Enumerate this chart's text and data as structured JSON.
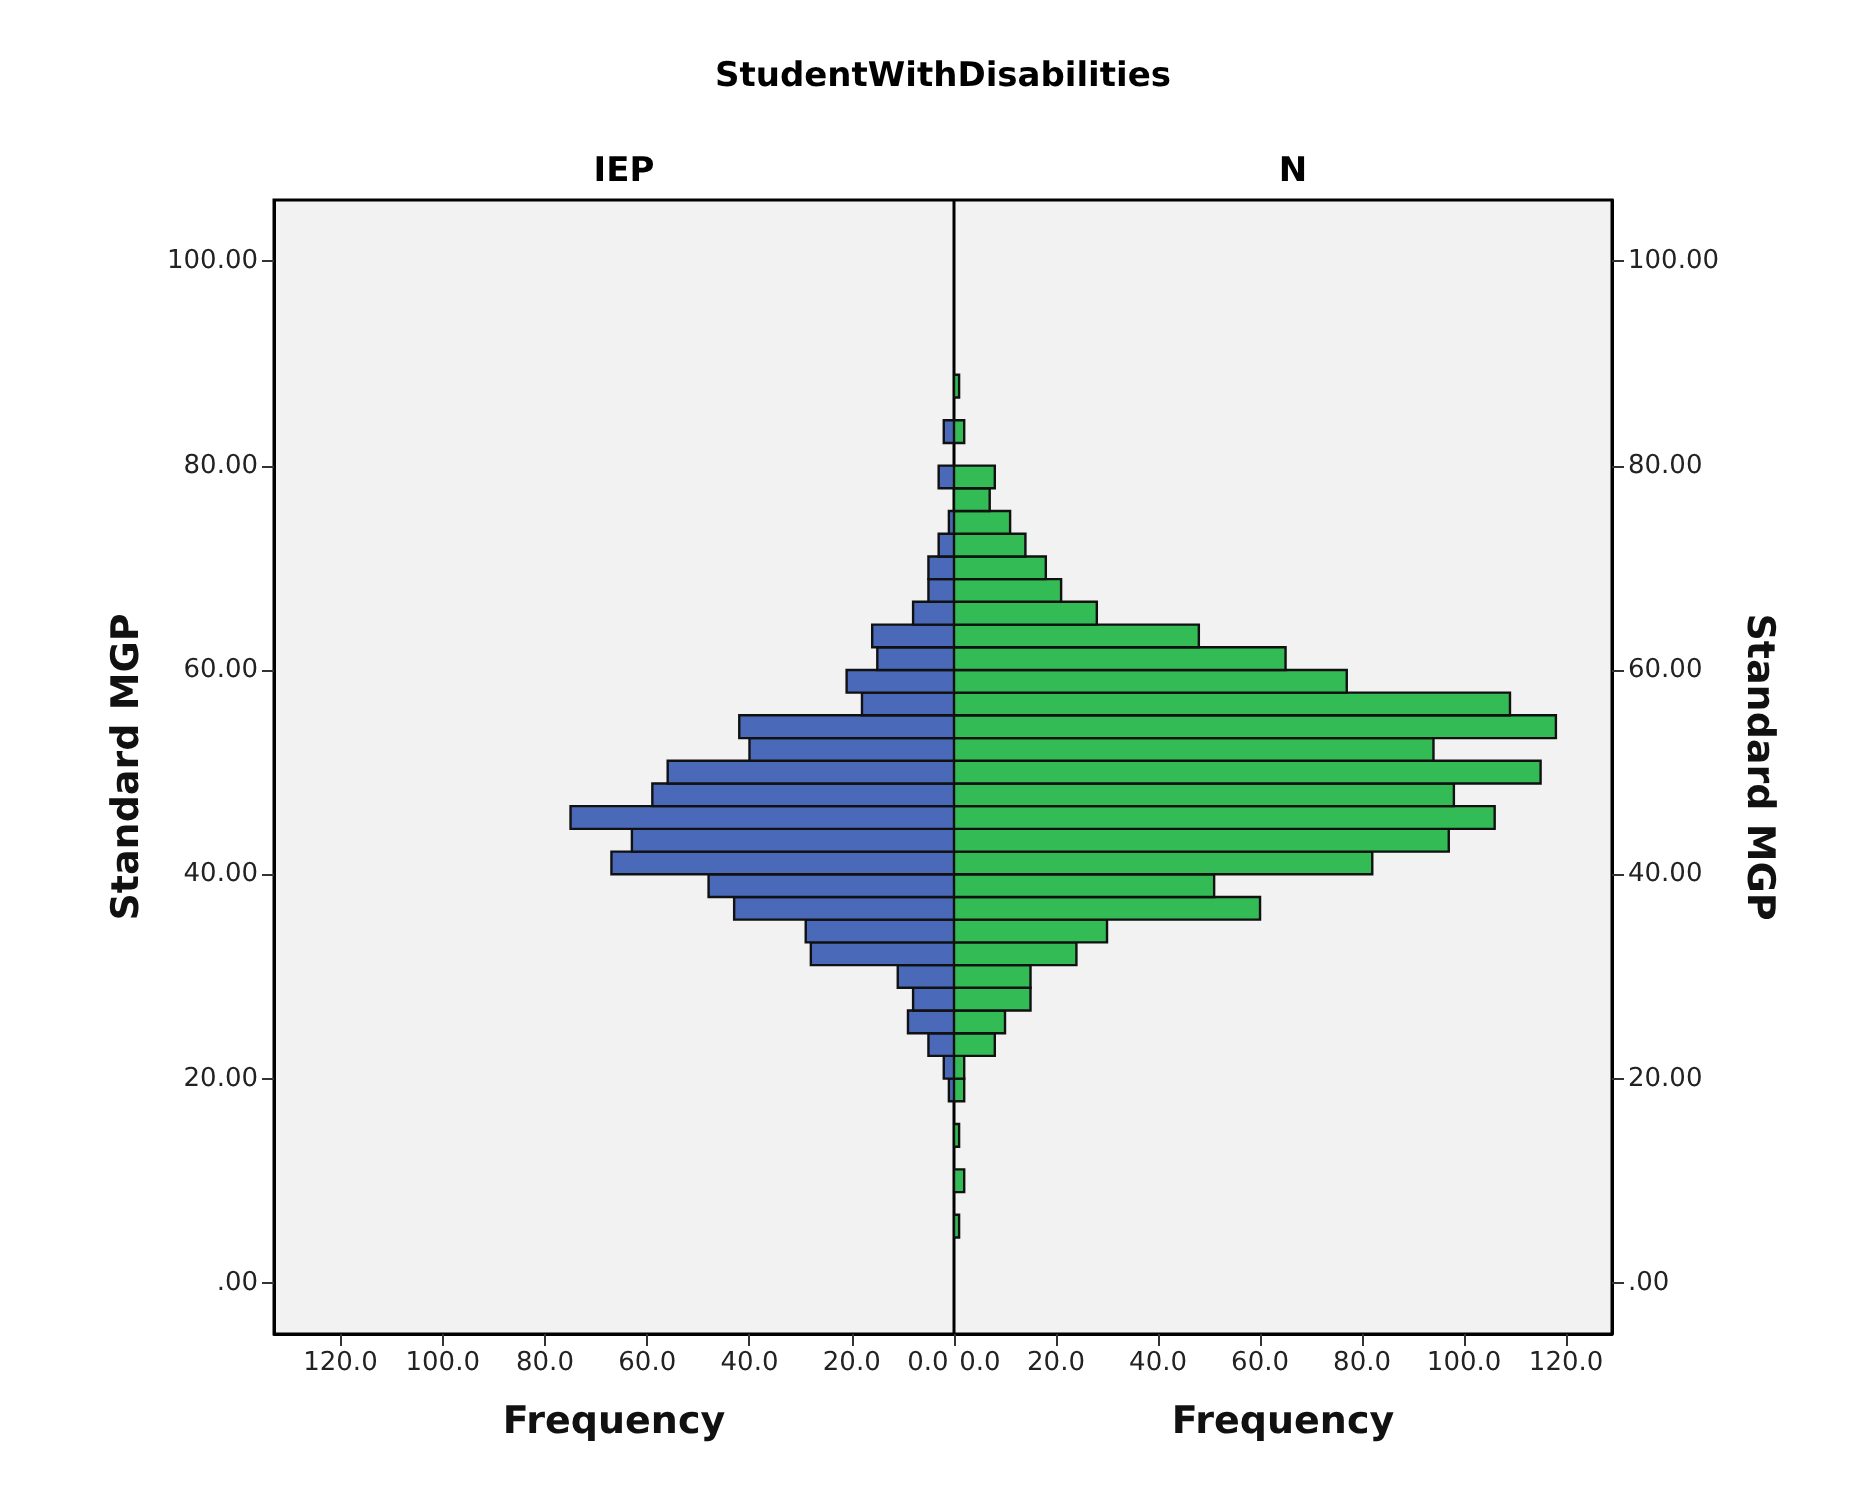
{
  "chart_data": [
    {
      "type": "histogram",
      "orientation": "horizontal",
      "title": "StudentWithDisabilities",
      "subtitle": "IEP",
      "xlabel": "Frequency",
      "ylabel": "Standard MGP",
      "color": "#4a6ab9",
      "bins": [
        4.44,
        6.67,
        8.89,
        11.11,
        13.33,
        15.56,
        17.78,
        20,
        22.22,
        24.44,
        26.67,
        28.89,
        31.11,
        33.33,
        35.56,
        37.78,
        40,
        42.22,
        44.44,
        46.67,
        48.89,
        51.11,
        53.33,
        55.56,
        57.78,
        60,
        62.22,
        64.44,
        66.67,
        68.89,
        71.11,
        73.33,
        75.56,
        77.78,
        80,
        82.22,
        84.44,
        86.67,
        88.89
      ],
      "values": [
        0,
        0,
        0,
        0,
        0,
        0,
        1,
        2,
        5,
        9,
        8,
        11,
        28,
        29,
        43,
        48,
        67,
        63,
        75,
        59,
        56,
        40,
        42,
        18,
        21,
        15,
        16,
        8,
        5,
        5,
        3,
        1,
        0,
        3,
        0,
        2,
        0,
        0
      ],
      "xlim": [
        133,
        0
      ],
      "xticks": [
        {
          "value": 120,
          "label": "120.0"
        },
        {
          "value": 100,
          "label": "100.0"
        },
        {
          "value": 80,
          "label": "80.0"
        },
        {
          "value": 60,
          "label": "60.0"
        },
        {
          "value": 40,
          "label": "40.0"
        },
        {
          "value": 20,
          "label": "20.0"
        },
        {
          "value": 0,
          "label": "0.0"
        }
      ],
      "ylim": [
        -5,
        106
      ],
      "yticks": [
        {
          "value": 0,
          "label": ".00"
        },
        {
          "value": 20,
          "label": "20.00"
        },
        {
          "value": 40,
          "label": "40.00"
        },
        {
          "value": 60,
          "label": "60.00"
        },
        {
          "value": 80,
          "label": "80.00"
        },
        {
          "value": 100,
          "label": "100.00"
        }
      ],
      "grid": false
    },
    {
      "type": "histogram",
      "orientation": "horizontal",
      "subtitle": "N",
      "xlabel": "Frequency",
      "ylabel": "Standard MGP",
      "color": "#33bb55",
      "bins": [
        4.44,
        6.67,
        8.89,
        11.11,
        13.33,
        15.56,
        17.78,
        20,
        22.22,
        24.44,
        26.67,
        28.89,
        31.11,
        33.33,
        35.56,
        37.78,
        40,
        42.22,
        44.44,
        46.67,
        48.89,
        51.11,
        53.33,
        55.56,
        57.78,
        60,
        62.22,
        64.44,
        66.67,
        68.89,
        71.11,
        73.33,
        75.56,
        77.78,
        80,
        82.22,
        84.44,
        86.67,
        88.89
      ],
      "values": [
        1,
        0,
        2,
        0,
        1,
        0,
        2,
        2,
        8,
        10,
        15,
        15,
        24,
        30,
        60,
        51,
        82,
        97,
        106,
        98,
        115,
        94,
        118,
        109,
        77,
        65,
        48,
        28,
        21,
        18,
        14,
        11,
        7,
        8,
        0,
        2,
        0,
        1
      ],
      "xlim": [
        0,
        129
      ],
      "xticks": [
        {
          "value": 0,
          "label": "0.0"
        },
        {
          "value": 20,
          "label": "20.0"
        },
        {
          "value": 40,
          "label": "40.0"
        },
        {
          "value": 60,
          "label": "60.0"
        },
        {
          "value": 80,
          "label": "80.0"
        },
        {
          "value": 100,
          "label": "100.0"
        },
        {
          "value": 120,
          "label": "120.0"
        }
      ],
      "ylim": [
        -5,
        106
      ],
      "yticks": [
        {
          "value": 0,
          "label": ".00"
        },
        {
          "value": 20,
          "label": "20.00"
        },
        {
          "value": 40,
          "label": "40.00"
        },
        {
          "value": 60,
          "label": "60.00"
        },
        {
          "value": 80,
          "label": "80.00"
        },
        {
          "value": 100,
          "label": "100.00"
        }
      ],
      "grid": false
    }
  ]
}
